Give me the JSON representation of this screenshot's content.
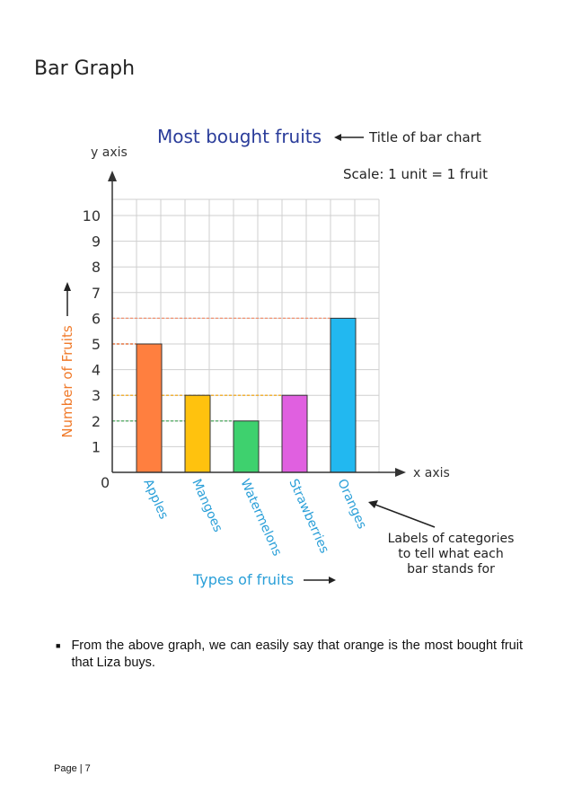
{
  "page": {
    "heading": "Bar Graph",
    "bullet": "From the above graph, we can easily say that orange is the most bought fruit that Liza buys.",
    "footer": "Page | 7"
  },
  "chart_data": {
    "type": "bar",
    "title": "Most bought fruits",
    "title_annotation": "Title of bar chart",
    "scale_note": "Scale: 1 unit = 1 fruit",
    "categories": [
      "Apples",
      "Mangoes",
      "Watermelons",
      "Strawberries",
      "Oranges"
    ],
    "values": [
      5,
      3,
      2,
      3,
      6
    ],
    "colors": [
      "#ff7f3f",
      "#ffc20e",
      "#3ed16e",
      "#e060e0",
      "#22b8f0"
    ],
    "ylabel": "Number of Fruits",
    "xlabel": "Types of fruits",
    "y_axis_name": "y axis",
    "x_axis_name": "x axis",
    "origin_label": "0",
    "ylim": [
      0,
      10
    ],
    "yticks": [
      1,
      2,
      3,
      4,
      5,
      6,
      7,
      8,
      9,
      10
    ],
    "grid": true,
    "category_annotation": [
      "Labels of categories",
      "to tell what each",
      "bar stands for"
    ],
    "title_color": "#2a3c9a",
    "ylabel_color": "#f07a2a",
    "xlabel_color": "#2a9fd8",
    "category_label_color": "#2a9fd8"
  }
}
